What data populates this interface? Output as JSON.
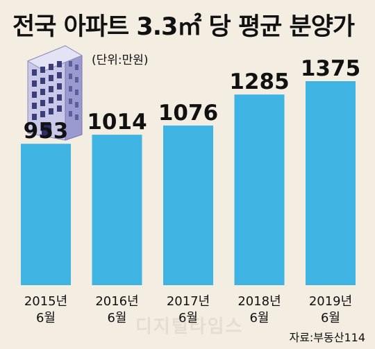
{
  "title": "전국 아파트 3.3㎡ 당 평균 분양가",
  "unit_note": "(단위:만원)",
  "source_note": "자료:부동산114",
  "watermark": "디지털타임스",
  "colors": {
    "bar": "#3fb4e3",
    "background": "#f3ede2",
    "text": "#111111"
  },
  "icons": {
    "building": "apartment-building-icon"
  },
  "chart_data": {
    "type": "bar",
    "title": "전국 아파트 3.3㎡ 당 평균 분양가",
    "ylabel": "",
    "xlabel": "",
    "categories": [
      [
        "2015년",
        "6월"
      ],
      [
        "2016년",
        "6월"
      ],
      [
        "2017년",
        "6월"
      ],
      [
        "2018년",
        "6월"
      ],
      [
        "2019년",
        "6월"
      ]
    ],
    "values": [
      953,
      1014,
      1076,
      1285,
      1375
    ],
    "data_labels": [
      "953",
      "1014",
      "1076",
      "1285",
      "1375"
    ],
    "ylim": [
      0,
      1375
    ],
    "grid": false,
    "legend": "none"
  }
}
